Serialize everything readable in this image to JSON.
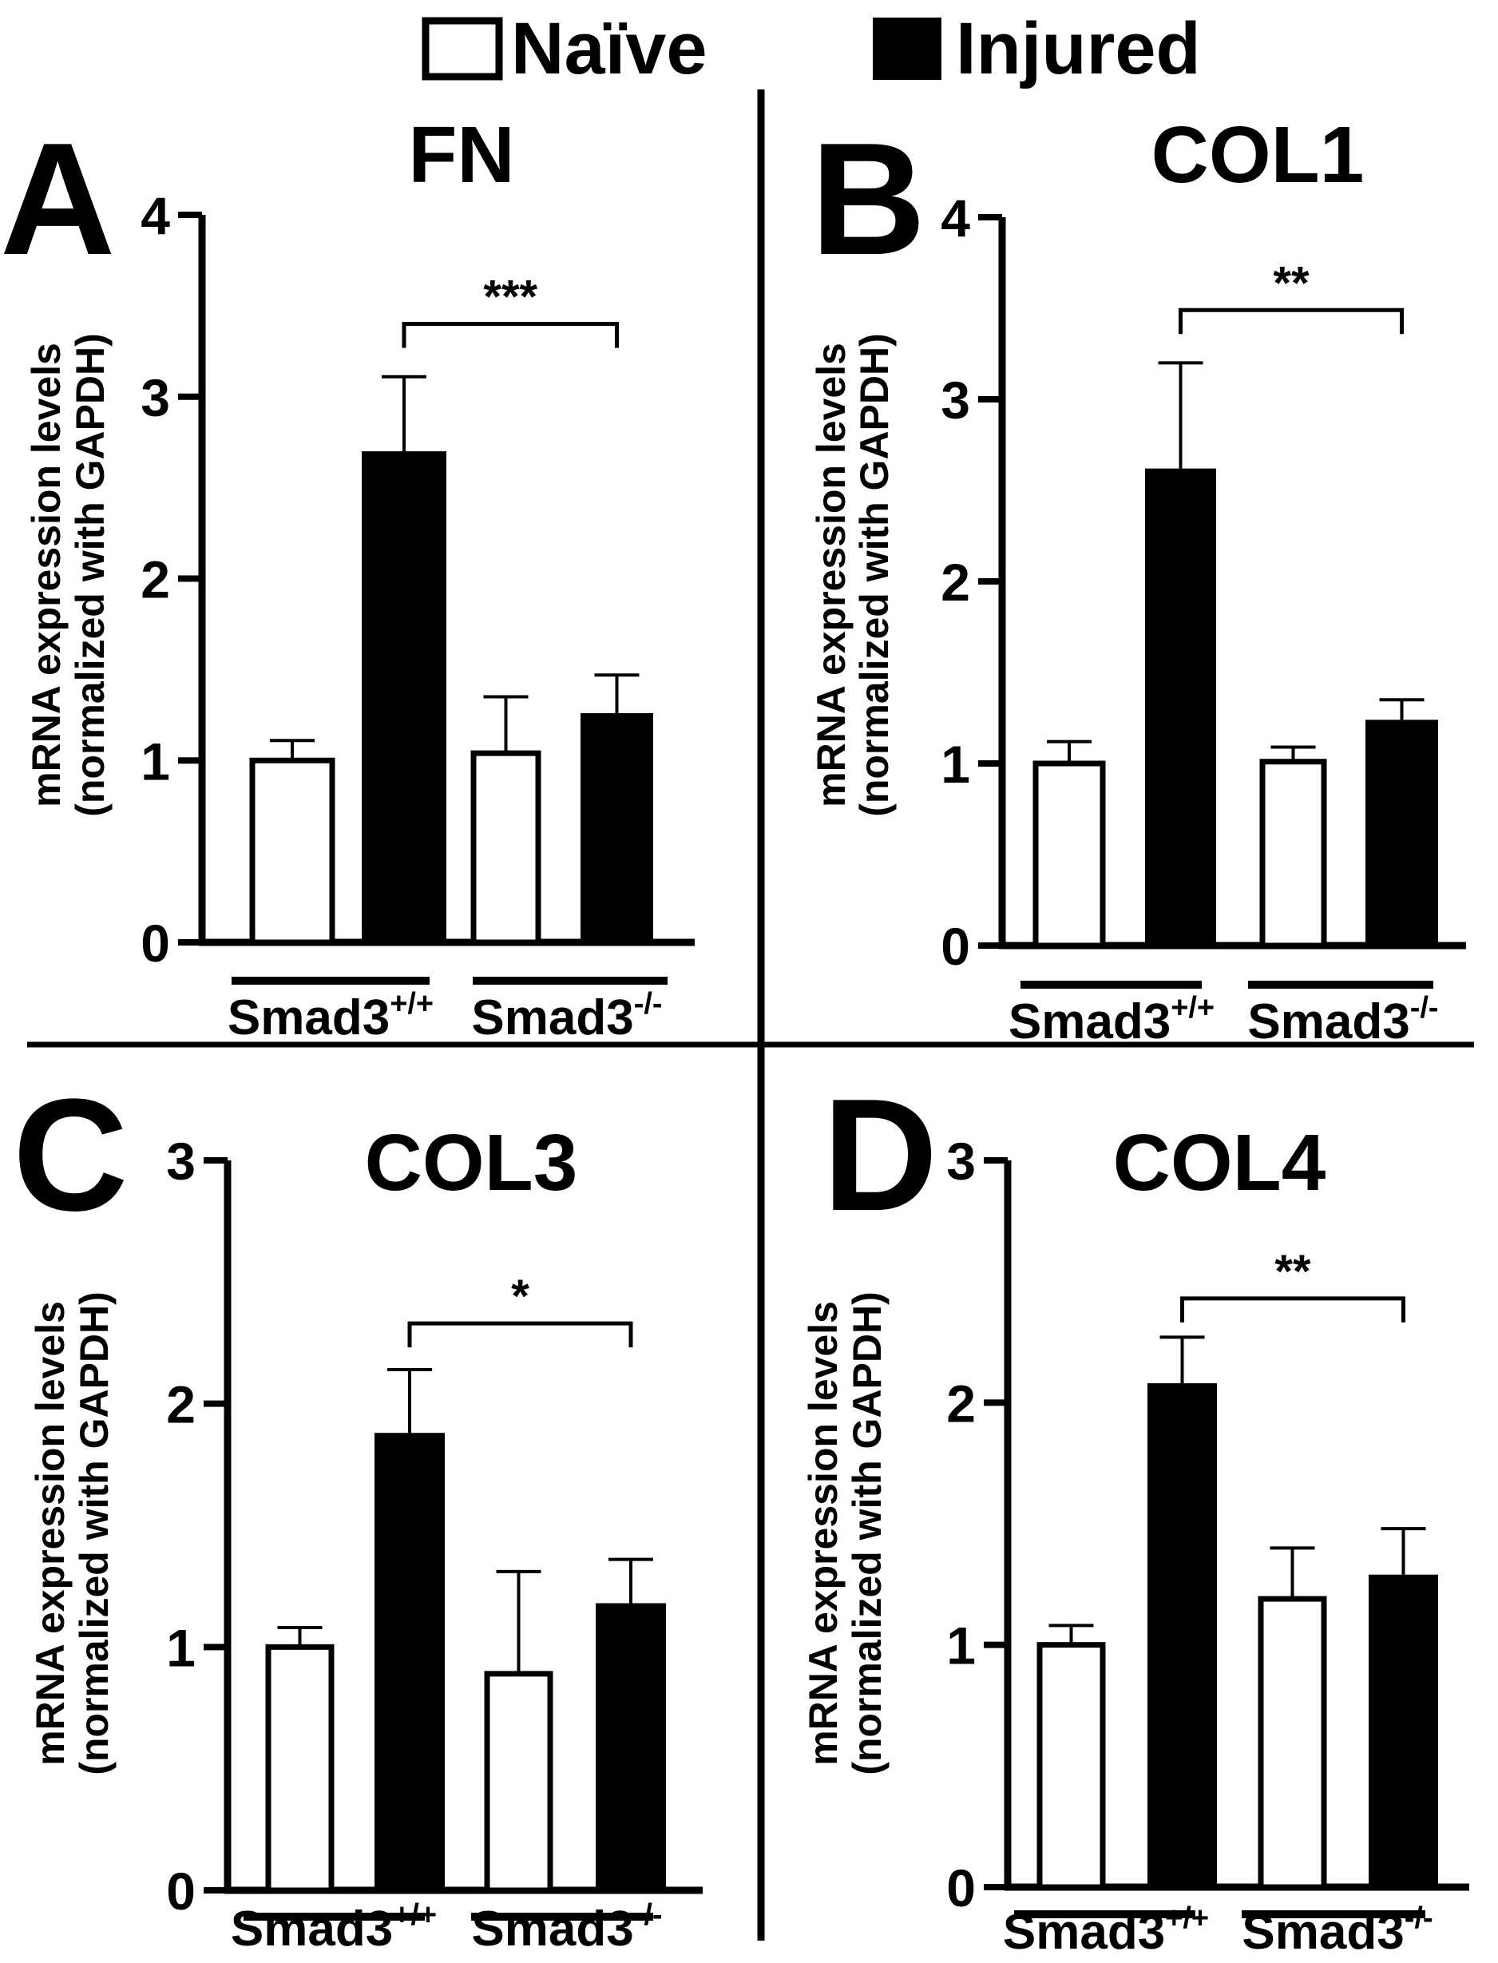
{
  "legend": {
    "items": [
      {
        "label": "Naïve",
        "fill": "#ffffff",
        "stroke": "#000000"
      },
      {
        "label": "Injured",
        "fill": "#000000",
        "stroke": "#000000"
      }
    ]
  },
  "colors": {
    "naive": "#ffffff",
    "injured": "#000000",
    "ink": "#000000"
  },
  "chart_data": [
    {
      "panel": "A",
      "type": "bar",
      "title": "FN",
      "ylabel": "mRNA expression levels\n(normalized with GAPDH)",
      "ylabel_lines": [
        "mRNA expression levels",
        "(normalized with GAPDH)"
      ],
      "ylim": [
        0,
        4
      ],
      "yticks": [
        0,
        1,
        2,
        3,
        4
      ],
      "groups": [
        {
          "label": "Smad3",
          "superscript": "+/+"
        },
        {
          "label": "Smad3",
          "superscript": "-/-"
        }
      ],
      "series": [
        {
          "name": "Naïve",
          "values": [
            1.0,
            1.04
          ],
          "error": [
            0.11,
            0.31
          ]
        },
        {
          "name": "Injured",
          "values": [
            2.7,
            1.26
          ],
          "error": [
            0.41,
            0.21
          ]
        }
      ],
      "significance": {
        "label": "***",
        "from": "Smad3+/+ Injured",
        "to": "Smad3-/- Injured",
        "level": 3.4
      }
    },
    {
      "panel": "B",
      "type": "bar",
      "title": "COL1",
      "ylabel": "mRNA expression levels\n(normalized with GAPDH)",
      "ylabel_lines": [
        "mRNA expression levels",
        "(normalized with GAPDH)"
      ],
      "ylim": [
        0,
        4
      ],
      "yticks": [
        0,
        1,
        2,
        3,
        4
      ],
      "groups": [
        {
          "label": "Smad3",
          "superscript": "+/+"
        },
        {
          "label": "Smad3",
          "superscript": "-/-"
        }
      ],
      "series": [
        {
          "name": "Naïve",
          "values": [
            1.0,
            1.01
          ],
          "error": [
            0.12,
            0.08
          ]
        },
        {
          "name": "Injured",
          "values": [
            2.62,
            1.24
          ],
          "error": [
            0.58,
            0.11
          ]
        }
      ],
      "significance": {
        "label": "**",
        "from": "Smad3+/+ Injured",
        "to": "Smad3-/- Injured",
        "level": 3.49
      }
    },
    {
      "panel": "C",
      "type": "bar",
      "title": "COL3",
      "ylabel": "mRNA expression levels\n(normalized with GAPDH)",
      "ylabel_lines": [
        "mRNA expression levels",
        "(normalized with GAPDH)"
      ],
      "ylim": [
        0,
        3
      ],
      "yticks": [
        0,
        1,
        2,
        3
      ],
      "groups": [
        {
          "label": "Smad3",
          "superscript": "+/+"
        },
        {
          "label": "Smad3",
          "superscript": "-/-"
        }
      ],
      "series": [
        {
          "name": "Naïve",
          "values": [
            1.0,
            0.89
          ],
          "error": [
            0.08,
            0.42
          ]
        },
        {
          "name": "Injured",
          "values": [
            1.88,
            1.18
          ],
          "error": [
            0.26,
            0.18
          ]
        }
      ],
      "significance": {
        "label": "*",
        "from": "Smad3+/+ Injured",
        "to": "Smad3-/- Injured",
        "level": 2.33
      }
    },
    {
      "panel": "D",
      "type": "bar",
      "title": "COL4",
      "ylabel": "mRNA expression levels\n(normalized with GAPDH)",
      "ylabel_lines": [
        "mRNA expression levels",
        "(normalized with GAPDH)"
      ],
      "ylim": [
        0,
        3
      ],
      "yticks": [
        0,
        1,
        2,
        3
      ],
      "groups": [
        {
          "label": "Smad3",
          "superscript": "+/+"
        },
        {
          "label": "Smad3",
          "superscript": "-/-"
        }
      ],
      "series": [
        {
          "name": "Naïve",
          "values": [
            1.0,
            1.19
          ],
          "error": [
            0.08,
            0.21
          ]
        },
        {
          "name": "Injured",
          "values": [
            2.08,
            1.29
          ],
          "error": [
            0.19,
            0.19
          ]
        }
      ],
      "significance": {
        "label": "**",
        "from": "Smad3+/+ Injured",
        "to": "Smad3-/- Injured",
        "level": 2.43
      }
    }
  ]
}
